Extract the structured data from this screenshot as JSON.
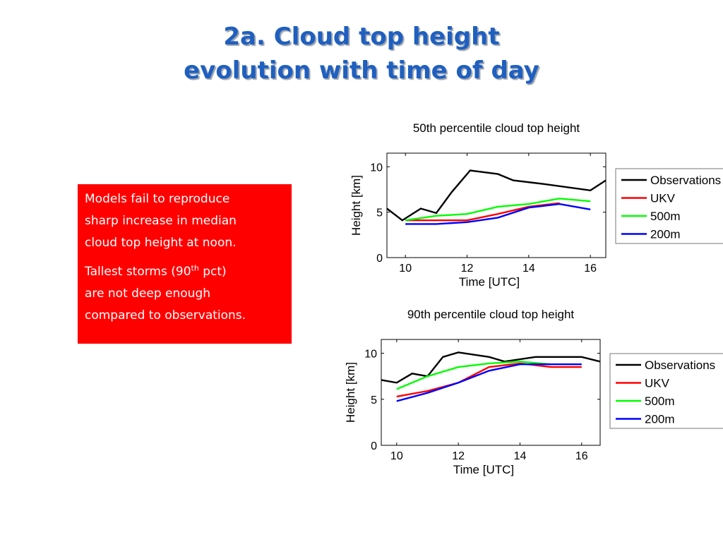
{
  "title": {
    "line1": "2a. Cloud top height",
    "line2": "evolution with time of day"
  },
  "note": {
    "para1": [
      "Models fail to reproduce",
      "sharp increase in median",
      "cloud top height at noon."
    ],
    "para2_line1_pre": "Tallest storms (90",
    "para2_line1_sup": "th",
    "para2_line1_post": " pct)",
    "para2_rest": [
      "are not deep enough",
      "compared to observations."
    ]
  },
  "chart_data": [
    {
      "type": "line",
      "title": "50th percentile cloud top height",
      "xlabel": "Time [UTC]",
      "ylabel": "Height [km]",
      "xlim": [
        9.4,
        16.5
      ],
      "ylim": [
        0,
        11.5
      ],
      "xticks": [
        10,
        12,
        14,
        16
      ],
      "yticks": [
        0,
        5,
        10
      ],
      "grid": false,
      "legend": "right",
      "series": [
        {
          "name": "Observations",
          "color": "#000000",
          "x": [
            9.4,
            9.9,
            10.5,
            11.0,
            11.5,
            12.1,
            13.0,
            13.5,
            14.5,
            16.0,
            16.5
          ],
          "y": [
            5.4,
            4.1,
            5.4,
            4.9,
            7.2,
            9.6,
            9.2,
            8.5,
            8.1,
            7.4,
            8.5
          ]
        },
        {
          "name": "UKV",
          "color": "#ff0000",
          "x": [
            10.0,
            11.0,
            12.0,
            13.0,
            14.0,
            15.0
          ],
          "y": [
            4.1,
            4.1,
            4.1,
            4.8,
            5.6,
            6.0
          ]
        },
        {
          "name": "500m",
          "color": "#00ff00",
          "x": [
            10.0,
            11.0,
            12.0,
            13.0,
            14.0,
            15.0,
            16.0
          ],
          "y": [
            4.1,
            4.6,
            4.8,
            5.6,
            5.9,
            6.5,
            6.2
          ]
        },
        {
          "name": "200m",
          "color": "#0000ff",
          "x": [
            10.0,
            11.0,
            12.0,
            13.0,
            14.0,
            15.0,
            16.0
          ],
          "y": [
            3.7,
            3.7,
            3.9,
            4.4,
            5.5,
            5.9,
            5.3
          ]
        }
      ]
    },
    {
      "type": "line",
      "title": "90th percentile cloud top height",
      "xlabel": "Time [UTC]",
      "ylabel": "Height [km]",
      "xlim": [
        9.5,
        16.6
      ],
      "ylim": [
        0,
        11.5
      ],
      "xticks": [
        10,
        12,
        14,
        16
      ],
      "yticks": [
        0,
        5,
        10
      ],
      "grid": false,
      "legend": "right",
      "series": [
        {
          "name": "Observations",
          "color": "#000000",
          "x": [
            9.5,
            10.0,
            10.5,
            11.0,
            11.5,
            12.0,
            13.0,
            13.5,
            14.5,
            16.0,
            16.6
          ],
          "y": [
            7.1,
            6.8,
            7.8,
            7.5,
            9.6,
            10.1,
            9.6,
            9.1,
            9.6,
            9.6,
            9.1
          ]
        },
        {
          "name": "UKV",
          "color": "#ff0000",
          "x": [
            10.0,
            11.0,
            12.0,
            13.0,
            14.0,
            15.0,
            16.0
          ],
          "y": [
            5.3,
            5.9,
            6.8,
            8.5,
            8.9,
            8.5,
            8.5
          ]
        },
        {
          "name": "500m",
          "color": "#00ff00",
          "x": [
            10.0,
            11.0,
            12.0,
            13.0,
            14.0,
            15.0
          ],
          "y": [
            6.1,
            7.5,
            8.5,
            8.9,
            9.1,
            8.8
          ]
        },
        {
          "name": "200m",
          "color": "#0000ff",
          "x": [
            10.0,
            11.0,
            12.0,
            13.0,
            14.0,
            15.0,
            16.0
          ],
          "y": [
            4.8,
            5.7,
            6.8,
            8.1,
            8.8,
            8.8,
            8.8
          ]
        }
      ]
    }
  ]
}
